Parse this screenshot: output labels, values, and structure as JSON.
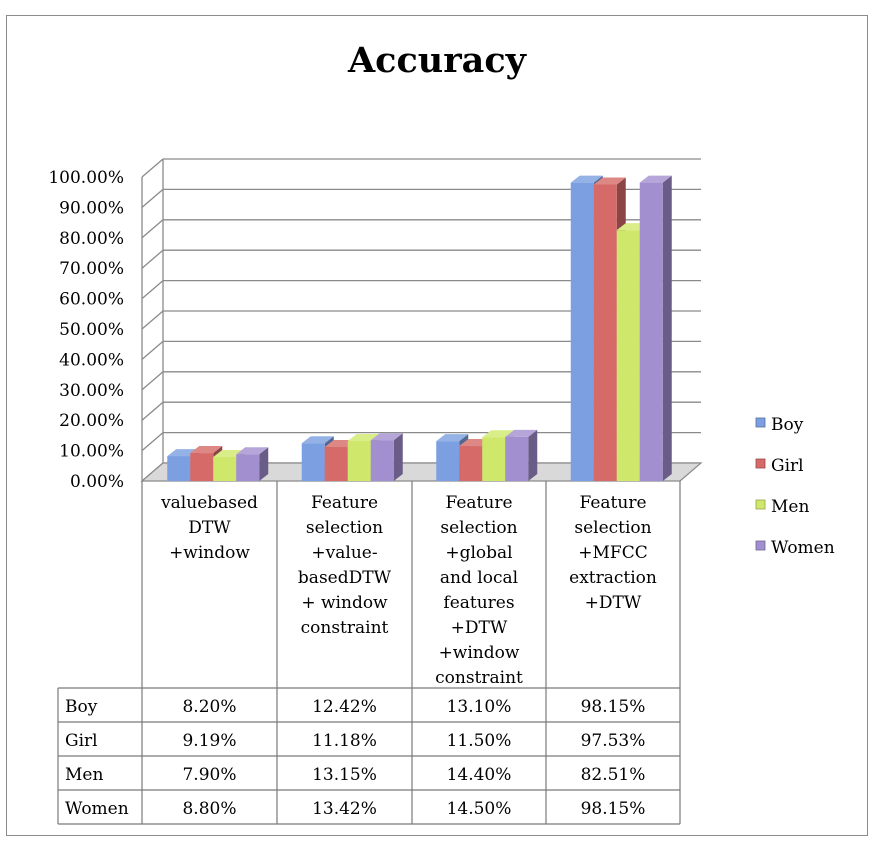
{
  "chart_data": {
    "type": "bar",
    "title": "Accuracy",
    "xlabel": "",
    "ylabel": "",
    "ylim": [
      0,
      100
    ],
    "y_ticks": [
      "0.00%",
      "10.00%",
      "20.00%",
      "30.00%",
      "40.00%",
      "50.00%",
      "60.00%",
      "70.00%",
      "80.00%",
      "90.00%",
      "100.00%"
    ],
    "grid": true,
    "legend_position": "right",
    "categories": [
      [
        "valuebased",
        "DTW",
        "+window"
      ],
      [
        "Feature",
        "selection",
        "+value-",
        "basedDTW",
        "+ window",
        "constraint"
      ],
      [
        "Feature",
        "selection",
        "+global",
        "and local",
        "features",
        "+DTW",
        "+window",
        "constraint"
      ],
      [
        "Feature",
        "selection",
        "+MFCC",
        "extraction",
        "+DTW"
      ]
    ],
    "series": [
      {
        "name": "Boy",
        "values": [
          8.2,
          12.42,
          13.1,
          98.15
        ],
        "labels": [
          "8.20%",
          "12.42%",
          "13.10%",
          "98.15%"
        ],
        "color": "#7b9fe0"
      },
      {
        "name": "Girl",
        "values": [
          9.19,
          11.18,
          11.5,
          97.53
        ],
        "labels": [
          "9.19%",
          "11.18%",
          "11.50%",
          "97.53%"
        ],
        "color": "#d66a68"
      },
      {
        "name": "Men",
        "values": [
          7.9,
          13.15,
          14.4,
          82.51
        ],
        "labels": [
          "7.90%",
          "13.15%",
          "14.40%",
          "82.51%"
        ],
        "color": "#cfe86b"
      },
      {
        "name": "Women",
        "values": [
          8.8,
          13.42,
          14.5,
          98.15
        ],
        "labels": [
          "8.80%",
          "13.42%",
          "14.50%",
          "98.15%"
        ],
        "color": "#a28fd0"
      }
    ]
  }
}
